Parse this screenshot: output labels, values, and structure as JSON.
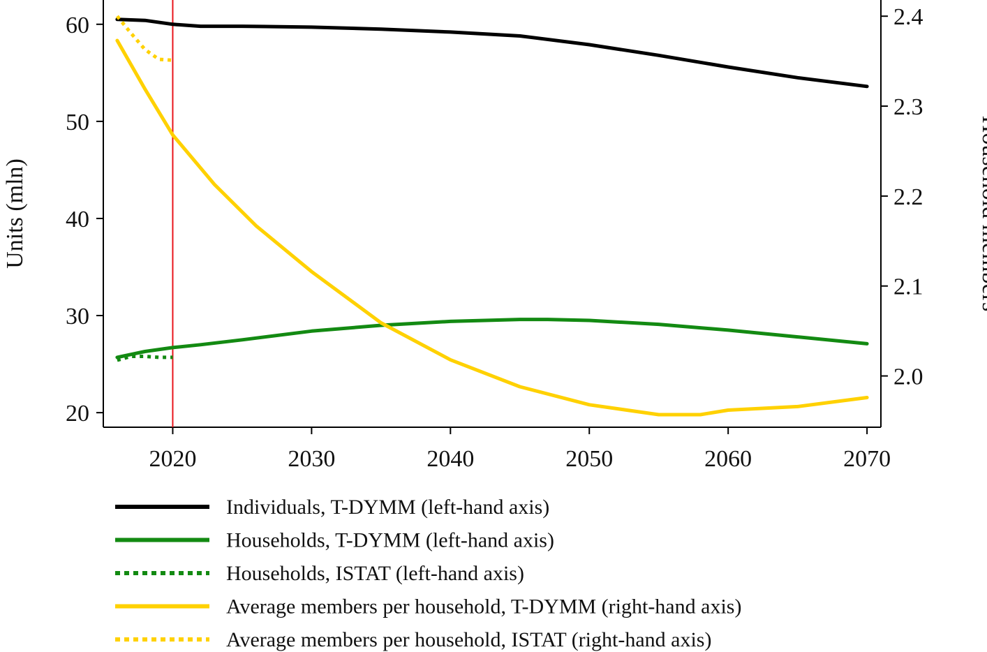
{
  "chart_data": {
    "type": "line",
    "ylabel_left": "Units (mln)",
    "ylabel_right": "Household members",
    "x_ticks": [
      2020,
      2030,
      2040,
      2050,
      2060,
      2070
    ],
    "x_ticks_text": [
      "2020",
      "2030",
      "2040",
      "2050",
      "2060",
      "2070"
    ],
    "y_left_ticks": [
      20,
      30,
      40,
      50,
      60
    ],
    "y_left_ticks_text": [
      "20",
      "30",
      "40",
      "50",
      "60"
    ],
    "y_right_ticks": [
      2.0,
      2.1,
      2.2,
      2.3,
      2.4
    ],
    "y_right_ticks_text": [
      "2.0",
      "2.1",
      "2.2",
      "2.3",
      "2.4"
    ],
    "xlim": [
      2015,
      2071
    ],
    "ylim_left": [
      18.5,
      62.5
    ],
    "ylim_right": [
      1.943,
      2.418
    ],
    "reference_line_x": 2020,
    "reference_line_color": "#e8141a",
    "grid": false,
    "legend_position": "bottom",
    "series": [
      {
        "name": "Individuals, T-DYMM (left-hand axis)",
        "axis": "left",
        "color": "#000000",
        "style": "solid",
        "x": [
          2016,
          2018,
          2020,
          2022,
          2025,
          2030,
          2035,
          2040,
          2045,
          2050,
          2055,
          2060,
          2065,
          2070
        ],
        "y": [
          60.5,
          60.4,
          60.0,
          59.8,
          59.8,
          59.7,
          59.5,
          59.2,
          58.8,
          57.9,
          56.8,
          55.6,
          54.5,
          53.6
        ]
      },
      {
        "name": "Households, T-DYMM (left-hand axis)",
        "axis": "left",
        "color": "#138a12",
        "style": "solid",
        "x": [
          2016,
          2018,
          2020,
          2022,
          2025,
          2030,
          2035,
          2040,
          2045,
          2047,
          2050,
          2055,
          2060,
          2065,
          2070
        ],
        "y": [
          25.7,
          26.3,
          26.7,
          27.0,
          27.5,
          28.4,
          29.0,
          29.4,
          29.6,
          29.6,
          29.5,
          29.1,
          28.5,
          27.8,
          27.1
        ]
      },
      {
        "name": "Households, ISTAT (left-hand axis)",
        "axis": "left",
        "color": "#138a12",
        "style": "dotted",
        "x": [
          2016,
          2017,
          2018,
          2019,
          2020
        ],
        "y": [
          25.4,
          25.8,
          25.8,
          25.7,
          25.7
        ]
      },
      {
        "name": "Average members per household, T-DYMM (right-hand axis)",
        "axis": "right",
        "color": "#ffd100",
        "style": "solid",
        "x": [
          2016,
          2018,
          2020,
          2023,
          2026,
          2030,
          2035,
          2040,
          2045,
          2050,
          2055,
          2058,
          2060,
          2065,
          2070
        ],
        "y": [
          2.373,
          2.319,
          2.268,
          2.213,
          2.167,
          2.116,
          2.059,
          2.018,
          1.988,
          1.968,
          1.957,
          1.957,
          1.962,
          1.966,
          1.976
        ]
      },
      {
        "name": "Average members per household, ISTAT (right-hand axis)",
        "axis": "right",
        "color": "#ffd100",
        "style": "dotted",
        "x": [
          2016,
          2017,
          2018,
          2019,
          2020
        ],
        "y": [
          2.4,
          2.381,
          2.363,
          2.352,
          2.351
        ]
      }
    ]
  }
}
